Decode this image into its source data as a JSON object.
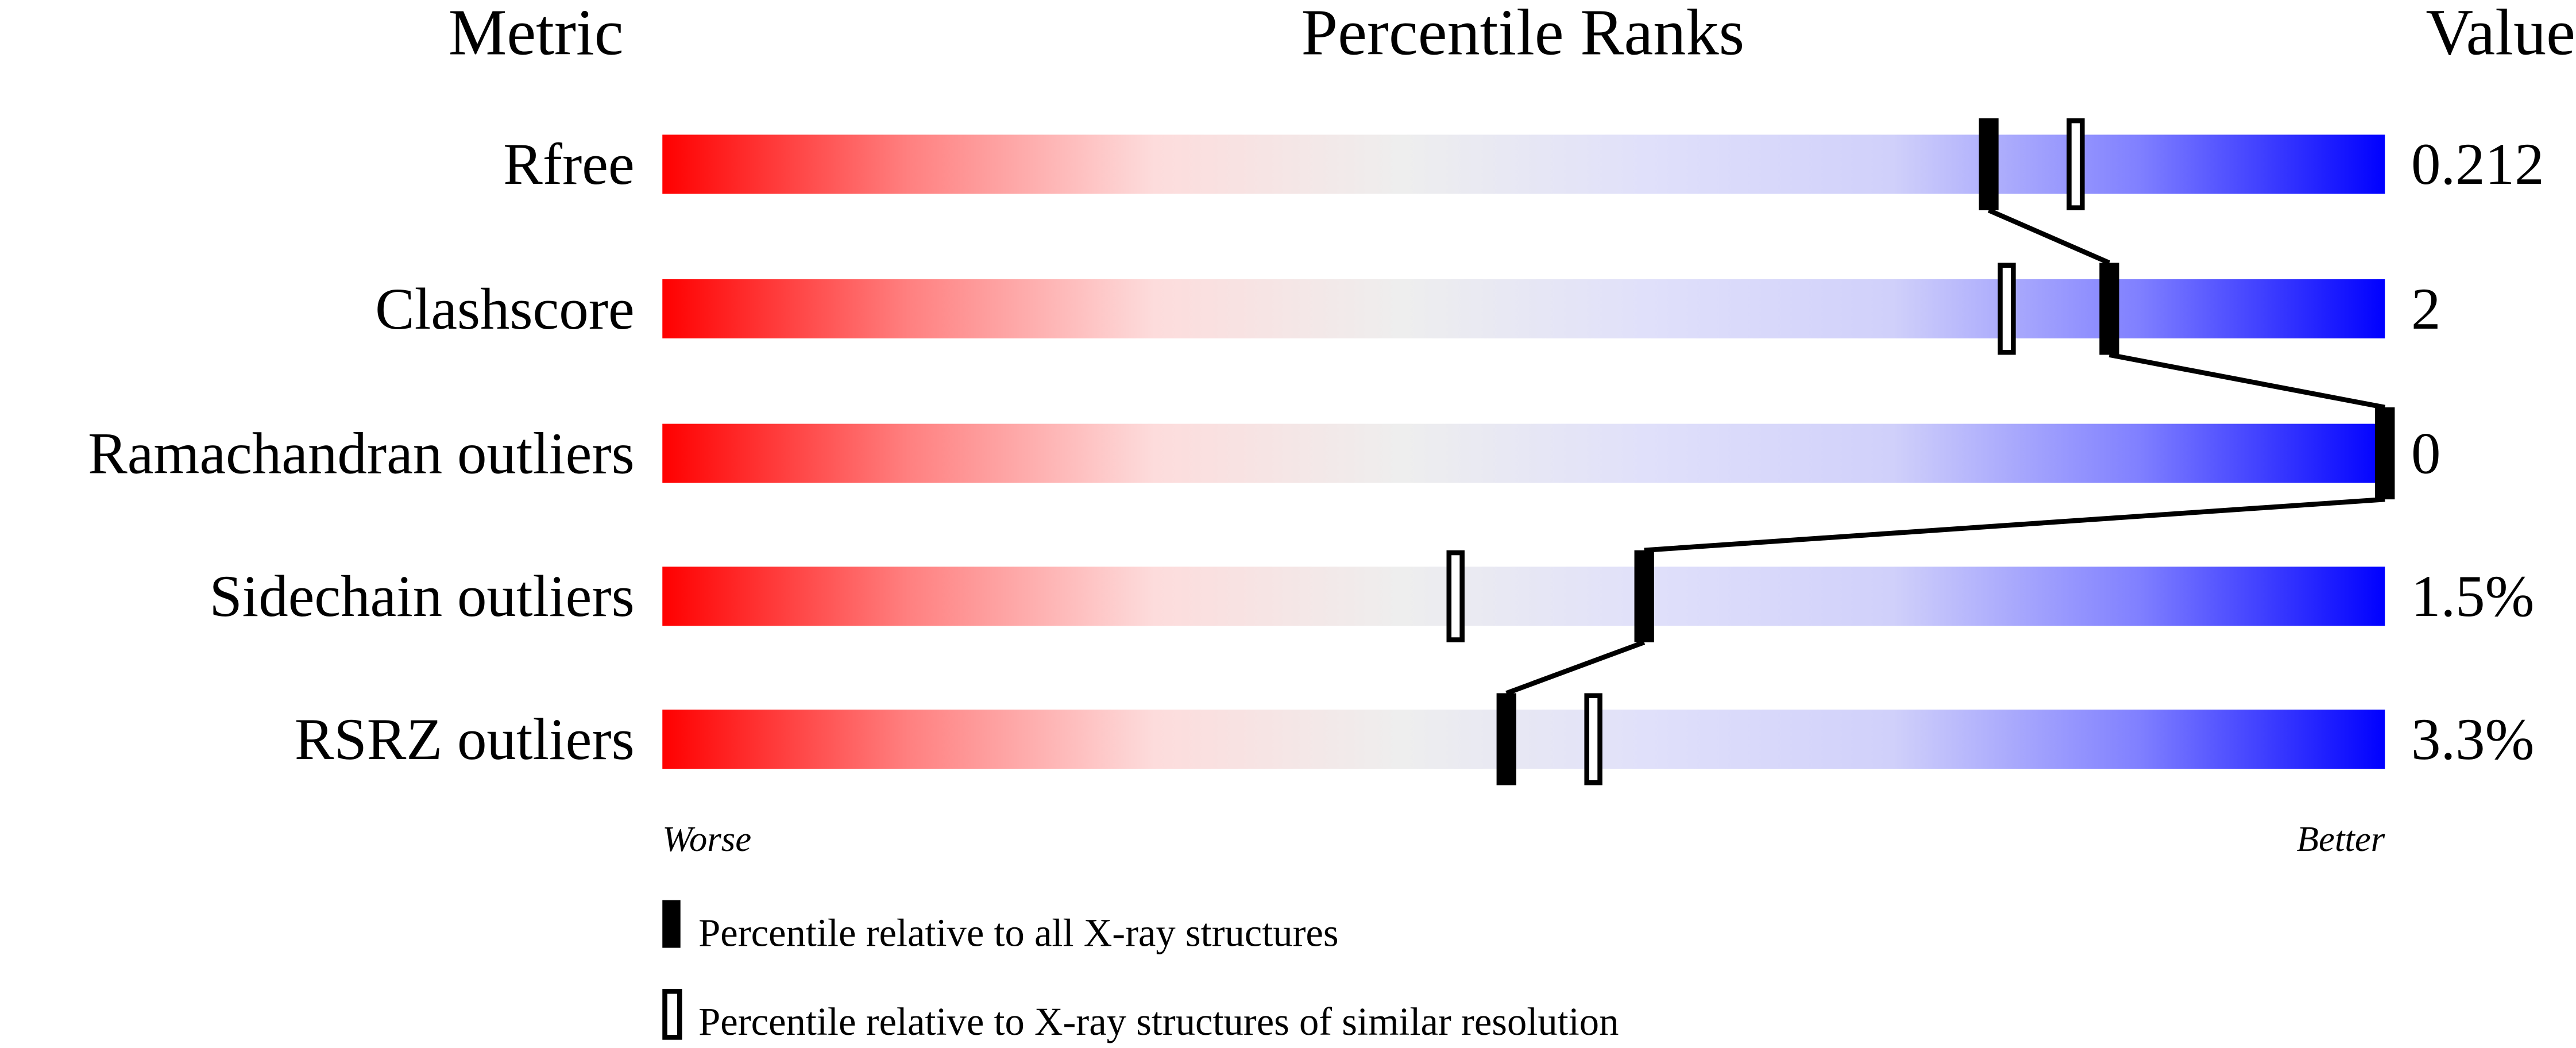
{
  "chart_data": {
    "type": "percentile-bar",
    "headers": {
      "metric": "Metric",
      "ranks": "Percentile Ranks",
      "value": "Value"
    },
    "xlim": [
      0,
      100
    ],
    "gradient_colors": [
      "#ff0000",
      "#ff8080",
      "#fddcdc",
      "#eeeeee",
      "#e0e0fa",
      "#d0d0fa",
      "#8080ff",
      "#0000ff"
    ],
    "metrics": [
      {
        "name": "Rfree",
        "value": "0.212",
        "percentile_all": 77,
        "percentile_similar": 82
      },
      {
        "name": "Clashscore",
        "value": "2",
        "percentile_all": 84,
        "percentile_similar": 78
      },
      {
        "name": "Ramachandran outliers",
        "value": "0",
        "percentile_all": 100,
        "percentile_similar": 100
      },
      {
        "name": "Sidechain outliers",
        "value": "1.5%",
        "percentile_all": 57,
        "percentile_similar": 46
      },
      {
        "name": "RSRZ outliers",
        "value": "3.3%",
        "percentile_all": 49,
        "percentile_similar": 54
      }
    ],
    "axis_labels": {
      "left": "Worse",
      "right": "Better"
    },
    "legend": {
      "all": "Percentile relative to all X-ray structures",
      "similar": "Percentile relative to X-ray structures of similar resolution"
    }
  }
}
